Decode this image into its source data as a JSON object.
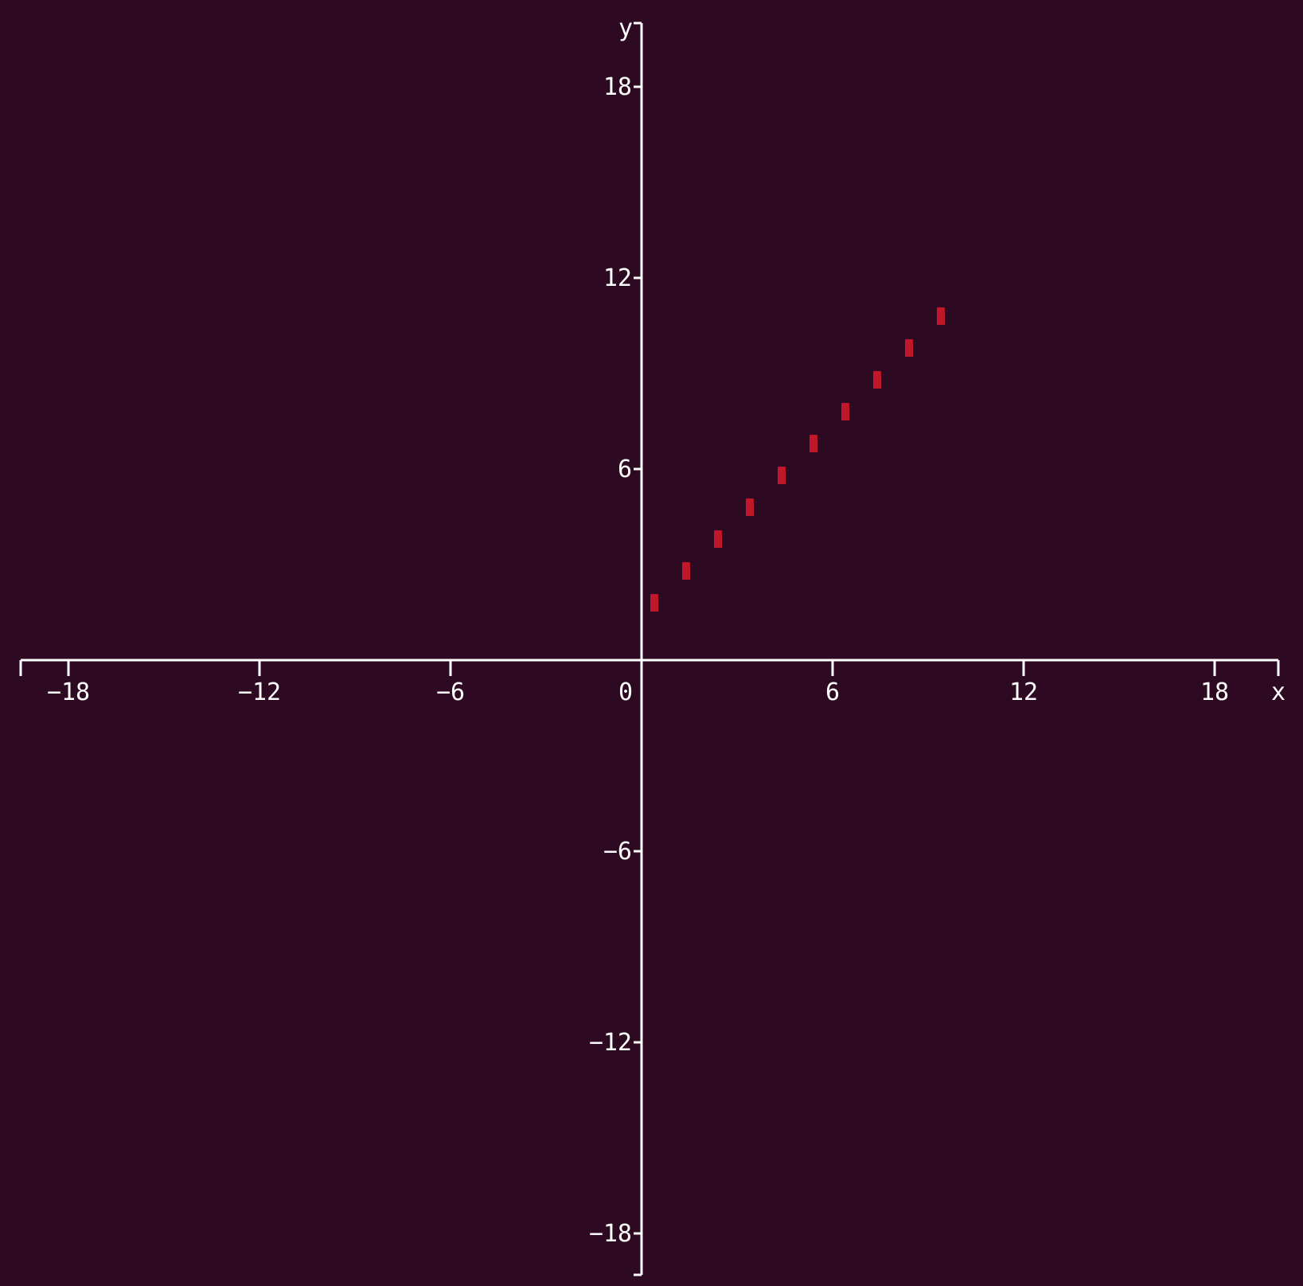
{
  "chart_data": {
    "type": "scatter",
    "title": "",
    "xlabel": "x",
    "ylabel": "y",
    "xlim": [
      -19.5,
      20
    ],
    "ylim": [
      -19.3,
      20
    ],
    "grid": false,
    "x_ticks": [
      {
        "value": -18,
        "label": "−18"
      },
      {
        "value": -12,
        "label": "−12"
      },
      {
        "value": -6,
        "label": "−6"
      },
      {
        "value": 0,
        "label": "0"
      },
      {
        "value": 6,
        "label": "6"
      },
      {
        "value": 12,
        "label": "12"
      },
      {
        "value": 18,
        "label": "18"
      }
    ],
    "y_ticks": [
      {
        "value": 18,
        "label": "18"
      },
      {
        "value": 12,
        "label": "12"
      },
      {
        "value": 6,
        "label": "6"
      },
      {
        "value": -6,
        "label": "−6"
      },
      {
        "value": -12,
        "label": "−12"
      },
      {
        "value": -18,
        "label": "−18"
      }
    ],
    "series": [
      {
        "color": "#c0182a",
        "marker": "vertical-dash",
        "points": [
          {
            "x": 0.4,
            "y": 1.8
          },
          {
            "x": 1.4,
            "y": 2.8
          },
          {
            "x": 2.4,
            "y": 3.8
          },
          {
            "x": 3.4,
            "y": 4.8
          },
          {
            "x": 4.4,
            "y": 5.8
          },
          {
            "x": 5.4,
            "y": 6.8
          },
          {
            "x": 6.4,
            "y": 7.8
          },
          {
            "x": 7.4,
            "y": 8.8
          },
          {
            "x": 8.4,
            "y": 9.8
          },
          {
            "x": 9.4,
            "y": 10.8
          }
        ]
      }
    ]
  }
}
